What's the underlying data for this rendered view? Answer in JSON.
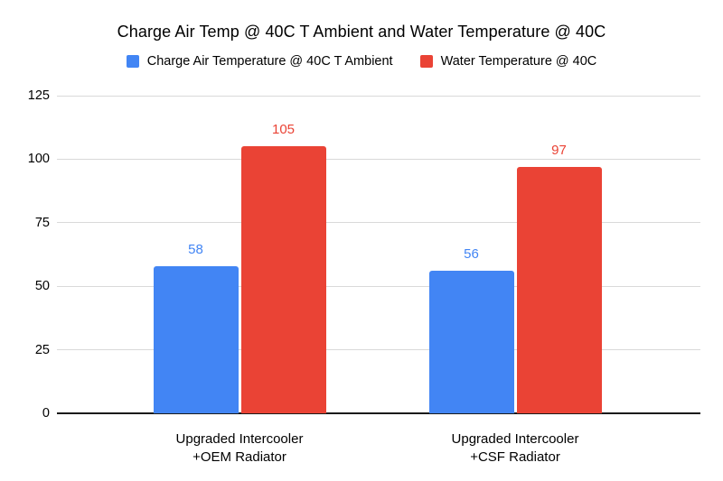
{
  "chart_data": {
    "type": "bar",
    "title": "Charge Air Temp @ 40C T Ambient and Water Temperature @ 40C",
    "categories": [
      [
        "Upgraded Intercooler",
        "+OEM Radiator"
      ],
      [
        "Upgraded Intercooler",
        "+CSF Radiator"
      ]
    ],
    "series": [
      {
        "name": "Charge Air Temperature @ 40C T Ambient",
        "color": "#4285F4",
        "values": [
          58,
          56
        ]
      },
      {
        "name": "Water Temperature @ 40C",
        "color": "#EA4335",
        "values": [
          105,
          97
        ]
      }
    ],
    "data_labels": [
      {
        "series": "Charge Air Temperature @ 40C T Ambient",
        "values": [
          "58",
          "56"
        ]
      },
      {
        "series": "Water Temperature @ 40C",
        "values": [
          "105",
          "97"
        ]
      }
    ],
    "y_ticks": [
      "0",
      "25",
      "50",
      "75",
      "100",
      "125"
    ],
    "ylim": [
      0,
      125
    ],
    "grid": true,
    "legend_position": "top",
    "colors": {
      "background": "#FFFFFF",
      "gridline": "#D9D9D9",
      "axis_line": "#1A1A1A",
      "title_text": "#000000",
      "tick_text": "#000000"
    }
  }
}
